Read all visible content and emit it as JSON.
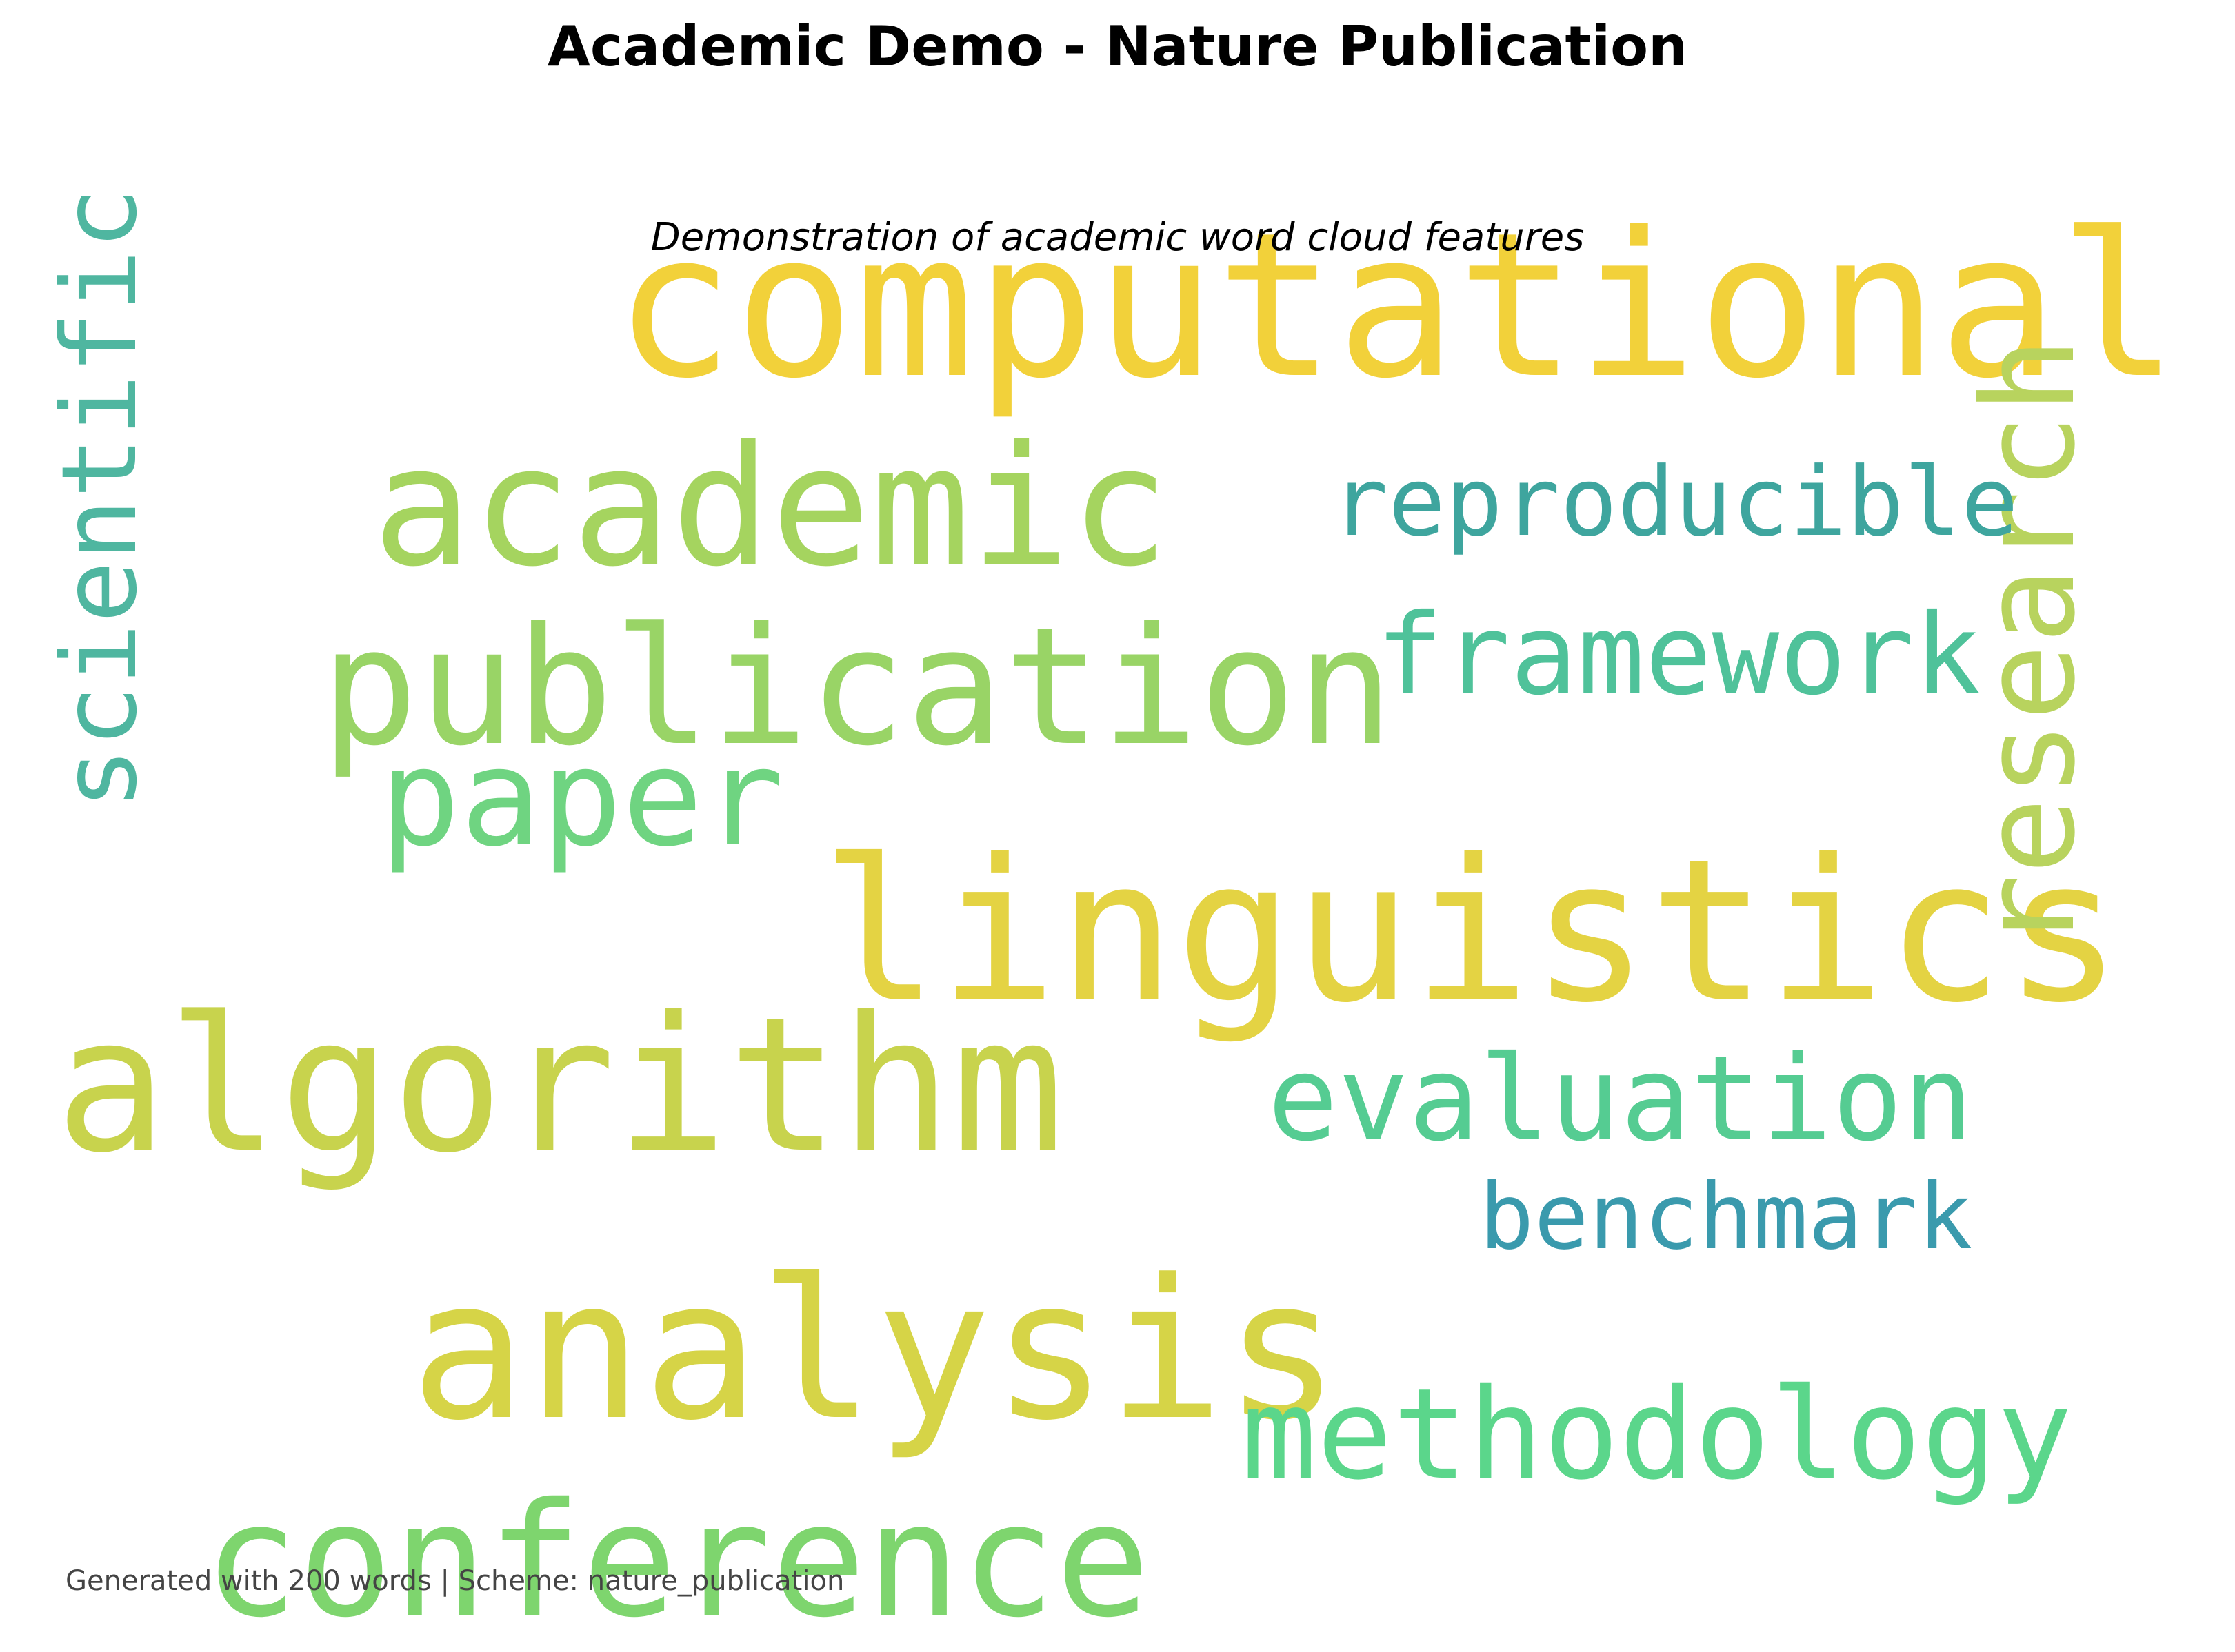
{
  "title": "Academic Demo - Nature Publication",
  "subtitle": "Demonstration of academic word cloud features",
  "footer": "Generated with 200 words | Scheme: nature_publication",
  "words": [
    {
      "text": "computational",
      "color": "#f2d13a"
    },
    {
      "text": "linguistics",
      "color": "#e4d343"
    },
    {
      "text": "research",
      "color": "#b8d35e"
    },
    {
      "text": "analysis",
      "color": "#d6d447"
    },
    {
      "text": "algorithm",
      "color": "#c8d34d"
    },
    {
      "text": "publication",
      "color": "#99d466"
    },
    {
      "text": "academic",
      "color": "#a5d45f"
    },
    {
      "text": "conference",
      "color": "#7ed56e"
    },
    {
      "text": "methodology",
      "color": "#5bd68b"
    },
    {
      "text": "scientific",
      "color": "#4fb6a0"
    },
    {
      "text": "paper",
      "color": "#6fd481"
    },
    {
      "text": "framework",
      "color": "#4fc29a"
    },
    {
      "text": "evaluation",
      "color": "#55cc92"
    },
    {
      "text": "reproducible",
      "color": "#3ea59e"
    },
    {
      "text": "benchmark",
      "color": "#3a9aad"
    }
  ]
}
